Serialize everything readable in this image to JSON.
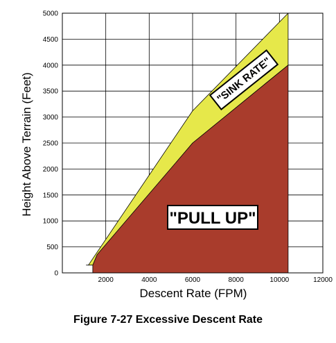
{
  "chart_data": {
    "type": "area",
    "xlabel": "Descent Rate (FPM)",
    "ylabel": "Height Above Terrain (Feet)",
    "xlim": [
      0,
      12000
    ],
    "ylim": [
      0,
      5000
    ],
    "x_ticks": [
      2000,
      4000,
      6000,
      8000,
      10000,
      12000
    ],
    "y_ticks": [
      0,
      500,
      1000,
      1500,
      2000,
      2500,
      3000,
      3500,
      4000,
      4500,
      5000
    ],
    "grid": true,
    "regions": [
      {
        "name": "\"SINK RATE\"",
        "color": "#e6e84a",
        "boundary": [
          [
            1100,
            150
          ],
          [
            1450,
            150
          ],
          [
            1600,
            300
          ],
          [
            6000,
            2500
          ],
          [
            10400,
            4000
          ],
          [
            10400,
            5000
          ],
          [
            6000,
            3120
          ],
          [
            1200,
            150
          ]
        ]
      },
      {
        "name": "\"PULL UP\"",
        "color": "#a93c2c",
        "boundary": [
          [
            1400,
            0
          ],
          [
            1400,
            150
          ],
          [
            1600,
            350
          ],
          [
            6000,
            2500
          ],
          [
            10400,
            4000
          ],
          [
            10400,
            0
          ]
        ]
      }
    ]
  },
  "caption": "Figure 7-27  Excessive Descent Rate"
}
